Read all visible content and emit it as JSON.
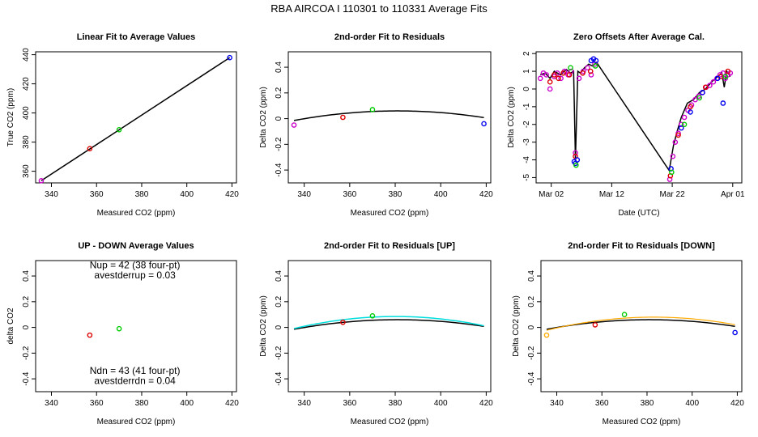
{
  "figure_title": "RBA   AIRCOA I   110301 to 110331   Average Fits",
  "colors": {
    "red": "#dd0000",
    "green": "#00cc00",
    "blue": "#0000ee",
    "magenta": "#cc00cc",
    "black": "#000000",
    "cyan": "#00dddd",
    "orange": "#ffaa00"
  },
  "chart_data": [
    {
      "type": "scatter",
      "title": "Linear Fit to Average Values",
      "xlabel": "Measured CO2 (ppm)",
      "ylabel": "True CO2 (ppm)",
      "xlim": [
        333,
        422
      ],
      "ylim": [
        352,
        442
      ],
      "xticks": [
        340,
        360,
        380,
        400,
        420
      ],
      "yticks": [
        360,
        380,
        400,
        420,
        440
      ],
      "points": [
        {
          "x": 335.5,
          "y": 353.5,
          "color": "magenta"
        },
        {
          "x": 357,
          "y": 375.5,
          "color": "red"
        },
        {
          "x": 370,
          "y": 388.5,
          "color": "green"
        },
        {
          "x": 419,
          "y": 438,
          "color": "blue"
        }
      ],
      "lines": [
        {
          "x": [
            335.5,
            419
          ],
          "y": [
            353.5,
            438
          ],
          "color": "black",
          "width": 1.5
        }
      ]
    },
    {
      "type": "scatter",
      "title": "2nd-order Fit to Residuals",
      "xlabel": "Measured CO2 (ppm)",
      "ylabel": "Delta CO2 (ppm)",
      "xlim": [
        333,
        422
      ],
      "ylim": [
        -0.5,
        0.52
      ],
      "xticks": [
        340,
        360,
        380,
        400,
        420
      ],
      "yticks": [
        -0.4,
        -0.2,
        0.0,
        0.2,
        0.4
      ],
      "points": [
        {
          "x": 335.5,
          "y": -0.05,
          "color": "magenta"
        },
        {
          "x": 357,
          "y": 0.01,
          "color": "red"
        },
        {
          "x": 370,
          "y": 0.07,
          "color": "green"
        },
        {
          "x": 419,
          "y": -0.04,
          "color": "blue"
        }
      ],
      "curves": [
        {
          "x0": 335.5,
          "x1": 419,
          "a": -3.6e-05,
          "xc": 381,
          "c": 0.06,
          "color": "black",
          "width": 1.5
        }
      ]
    },
    {
      "type": "line",
      "title": "Zero Offsets After Average Cal.",
      "xlabel": "Date (UTC)",
      "ylabel": "Delta CO2 (ppm)",
      "xlim": [
        -1.5,
        32.5
      ],
      "ylim": [
        -5.3,
        2.1
      ],
      "xticks": [
        1,
        11,
        21,
        31
      ],
      "xticklabels": [
        "Mar 02",
        "Mar 12",
        "Mar 22",
        "Apr 01"
      ],
      "yticks": [
        -5,
        -4,
        -3,
        -2,
        -1,
        0,
        1,
        2
      ],
      "series": [
        {
          "name": "black",
          "color": "black",
          "x": [
            -0.8,
            0,
            0.8,
            1.5,
            2.5,
            3.5,
            4.2,
            4.7,
            5.0,
            5.4,
            5.8,
            6.5,
            7.2,
            7.8,
            8.5,
            20.5,
            21.2,
            21.8,
            22.5,
            23.5,
            24.5,
            25.5,
            26.5,
            27.5,
            28.5,
            29.2,
            29.6,
            30.0,
            30.4,
            30.6
          ],
          "y": [
            0.8,
            0.9,
            0.6,
            1.0,
            0.8,
            1.1,
            0.9,
            1.0,
            -4.0,
            1.0,
            0.9,
            1.2,
            1.4,
            1.3,
            1.5,
            -4.6,
            -3.2,
            -2.4,
            -1.6,
            -0.8,
            -0.6,
            -0.2,
            0.0,
            0.4,
            0.7,
            0.9,
            0.1,
            1.0,
            0.8,
            0.7
          ]
        },
        {
          "name": "magenta",
          "color": "magenta",
          "x": [
            -0.8,
            -0.3,
            0.2,
            0.8,
            1.5,
            2.0,
            2.6,
            3.2,
            3.8,
            4.3,
            5.0,
            5.6,
            6.3,
            7.0,
            7.6,
            8.2,
            20.6,
            21.1,
            21.5,
            22.0,
            22.5,
            23.0,
            23.6,
            24.2,
            24.8,
            25.4,
            26.0,
            26.6,
            27.2,
            27.8,
            28.4,
            28.9,
            29.4,
            29.8,
            30.2,
            30.6
          ],
          "y": [
            0.6,
            0.9,
            0.8,
            0.0,
            0.7,
            0.9,
            0.6,
            1.0,
            0.8,
            1.0,
            -3.6,
            0.6,
            1.0,
            1.2,
            0.8,
            1.4,
            -5.1,
            -3.8,
            -3.0,
            -2.5,
            -2.0,
            -1.6,
            -1.2,
            -0.9,
            -0.6,
            -0.4,
            -0.2,
            0.1,
            0.2,
            0.4,
            0.6,
            0.8,
            0.9,
            0.6,
            0.8,
            0.9
          ]
        },
        {
          "name": "red",
          "color": "red",
          "x": [
            0.8,
            1.5,
            2.2,
            3.0,
            4.0,
            5.0,
            6.2,
            7.5,
            20.7,
            22.0,
            24.0,
            26.5,
            29.0,
            30.2
          ],
          "y": [
            0.4,
            0.8,
            0.6,
            0.9,
            0.8,
            -3.8,
            0.9,
            1.0,
            -4.9,
            -2.6,
            -1.0,
            0.1,
            0.7,
            1.0
          ]
        },
        {
          "name": "blue",
          "color": "blue",
          "x": [
            4.8,
            5.0,
            5.3,
            7.6,
            8.0,
            8.4,
            20.8,
            22.5,
            24.0,
            26.0,
            28.5,
            29.4
          ],
          "y": [
            -4.1,
            -4.2,
            -4.0,
            1.6,
            1.7,
            1.6,
            -4.5,
            -2.2,
            -1.3,
            -0.2,
            0.6,
            -0.8
          ]
        },
        {
          "name": "green",
          "color": "green",
          "x": [
            4.2,
            5.1,
            8.3,
            20.9,
            23.0,
            25.5,
            29.8
          ],
          "y": [
            1.2,
            -4.3,
            1.3,
            -4.7,
            -2.0,
            -0.5,
            0.7
          ]
        }
      ]
    },
    {
      "type": "scatter",
      "title": "UP - DOWN Average Values",
      "xlabel": "Measured CO2 (ppm)",
      "ylabel": "delta CO2",
      "xlim": [
        333,
        422
      ],
      "ylim": [
        -0.5,
        0.52
      ],
      "xticks": [
        340,
        360,
        380,
        400,
        420
      ],
      "yticks": [
        -0.4,
        -0.2,
        0.0,
        0.2,
        0.4
      ],
      "points": [
        {
          "x": 357,
          "y": -0.06,
          "color": "red"
        },
        {
          "x": 370,
          "y": -0.01,
          "color": "green"
        }
      ],
      "annotations": [
        {
          "text": "Nup = 42 (38 four-pt)",
          "x": 377,
          "y": 0.46
        },
        {
          "text": "avestderrup =  0.03",
          "x": 377,
          "y": 0.38
        },
        {
          "text": "Ndn = 43 (41 four-pt)",
          "x": 377,
          "y": -0.36
        },
        {
          "text": "avestderrdn =  0.04",
          "x": 377,
          "y": -0.44
        }
      ]
    },
    {
      "type": "scatter",
      "title": "2nd-order Fit to Residuals [UP]",
      "xlabel": "Measured CO2 (ppm)",
      "ylabel": "Delta CO2 (ppm)",
      "xlim": [
        333,
        422
      ],
      "ylim": [
        -0.5,
        0.52
      ],
      "xticks": [
        340,
        360,
        380,
        400,
        420
      ],
      "yticks": [
        -0.4,
        -0.2,
        0.0,
        0.2,
        0.4
      ],
      "points": [
        {
          "x": 357,
          "y": 0.04,
          "color": "red"
        },
        {
          "x": 370,
          "y": 0.09,
          "color": "green"
        }
      ],
      "curves": [
        {
          "x0": 335.5,
          "x1": 419,
          "a": -3.6e-05,
          "xc": 381,
          "c": 0.06,
          "color": "black",
          "width": 1.5
        },
        {
          "x0": 335.5,
          "x1": 419,
          "a": -4.75e-05,
          "xc": 380,
          "c": 0.085,
          "color": "cyan",
          "width": 1.5
        }
      ]
    },
    {
      "type": "scatter",
      "title": "2nd-order Fit to Residuals [DOWN]",
      "xlabel": "Measured CO2 (ppm)",
      "ylabel": "Delta CO2 (ppm)",
      "xlim": [
        333,
        422
      ],
      "ylim": [
        -0.5,
        0.52
      ],
      "xticks": [
        340,
        360,
        380,
        400,
        420
      ],
      "yticks": [
        -0.4,
        -0.2,
        0.0,
        0.2,
        0.4
      ],
      "points": [
        {
          "x": 335.5,
          "y": -0.06,
          "color": "orange"
        },
        {
          "x": 357,
          "y": 0.02,
          "color": "red"
        },
        {
          "x": 370,
          "y": 0.1,
          "color": "green"
        },
        {
          "x": 419,
          "y": -0.04,
          "color": "blue"
        }
      ],
      "curves": [
        {
          "x0": 335.5,
          "x1": 419,
          "a": -3.6e-05,
          "xc": 381,
          "c": 0.06,
          "color": "black",
          "width": 1.5
        },
        {
          "x0": 335.5,
          "x1": 419,
          "a": -4.55e-05,
          "xc": 383,
          "c": 0.08,
          "color": "orange",
          "width": 1.2
        }
      ]
    }
  ]
}
